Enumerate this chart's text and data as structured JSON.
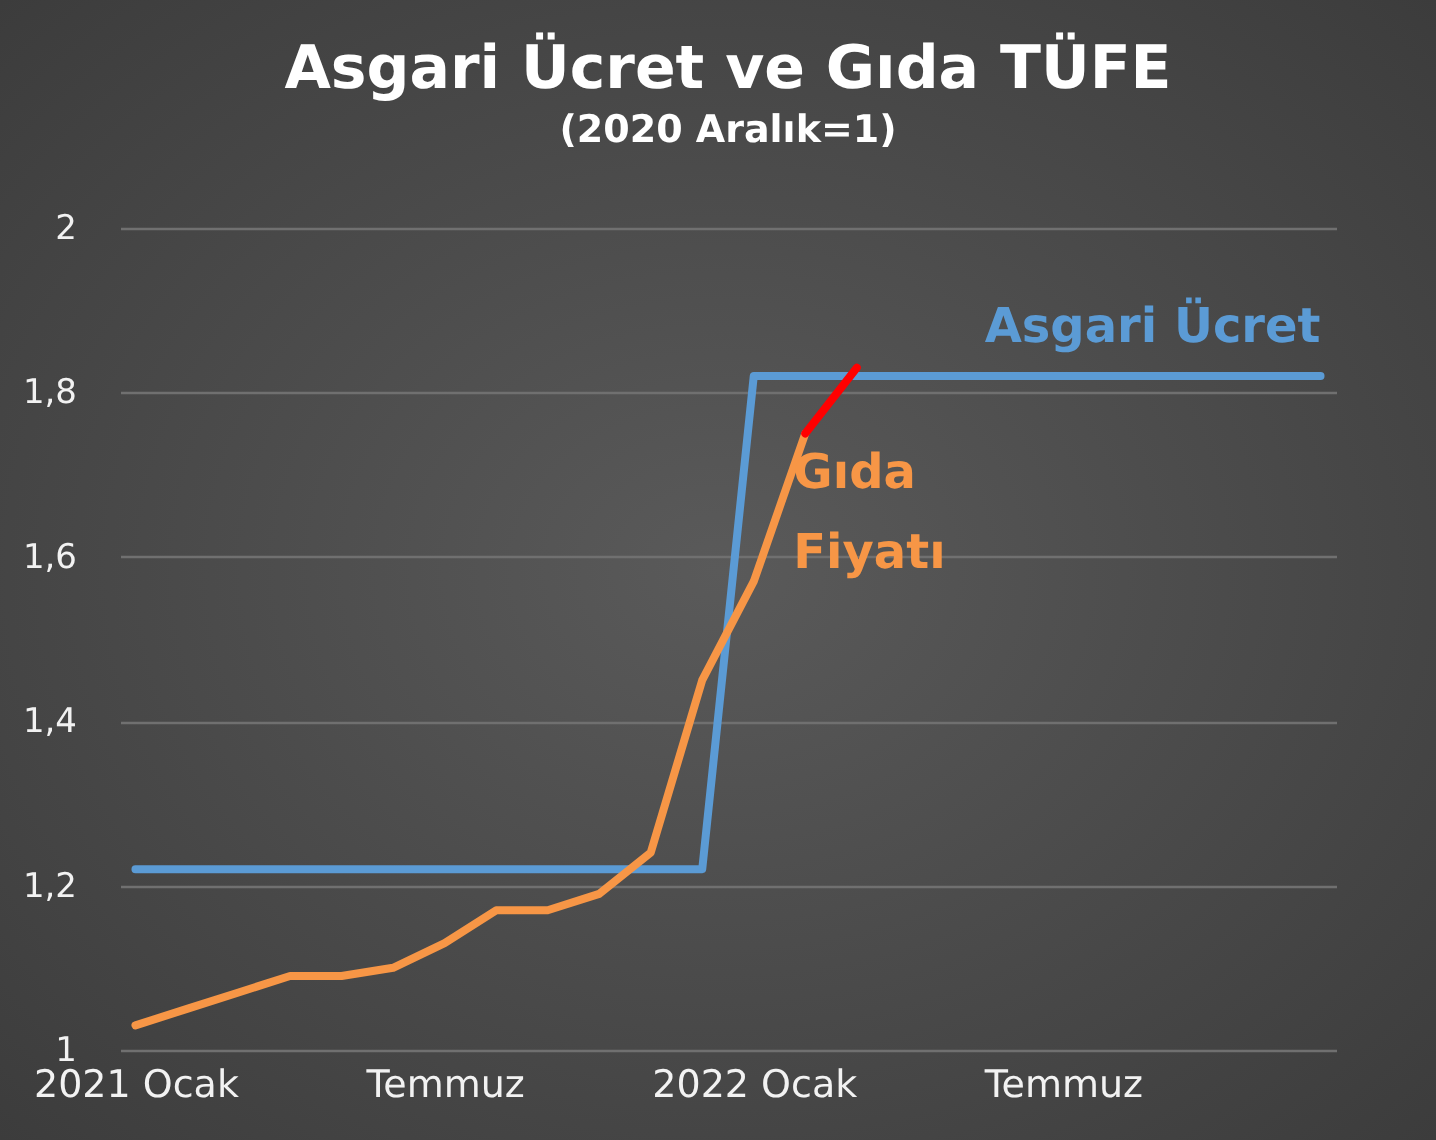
{
  "chart_data": {
    "type": "line",
    "title": "Asgari Ücret ve Gıda TÜFE",
    "subtitle": "(2020 Aralık=1)",
    "categories": [
      "2021 Ocak",
      null,
      null,
      null,
      null,
      null,
      "Temmuz",
      null,
      null,
      null,
      null,
      null,
      "2022 Ocak",
      null,
      null,
      null,
      null,
      null,
      "Temmuz",
      null,
      null,
      null,
      null,
      null
    ],
    "series": [
      {
        "name": "Asgari Ücret",
        "color": "#5b9bd5",
        "values": [
          1.22,
          1.22,
          1.22,
          1.22,
          1.22,
          1.22,
          1.22,
          1.22,
          1.22,
          1.22,
          1.22,
          1.22,
          1.82,
          1.82,
          1.82,
          1.82,
          1.82,
          1.82,
          1.82,
          1.82,
          1.82,
          1.82,
          1.82,
          1.82
        ]
      },
      {
        "name": "Gıda Fiyatı",
        "color": "#f79646",
        "values": [
          1.03,
          1.05,
          1.07,
          1.09,
          1.09,
          1.1,
          1.13,
          1.17,
          1.17,
          1.19,
          1.24,
          1.45,
          1.57,
          1.75,
          null,
          null,
          null,
          null,
          null,
          null,
          null,
          null,
          null,
          null
        ]
      },
      {
        "color": "#ff0000",
        "values": [
          null,
          null,
          null,
          null,
          null,
          null,
          null,
          null,
          null,
          null,
          null,
          null,
          null,
          1.75,
          1.83,
          null,
          null,
          null,
          null,
          null,
          null,
          null,
          null,
          null
        ]
      }
    ],
    "ylim": [
      1,
      2
    ],
    "yticks": [
      1,
      {
        "value": 1.2,
        "label": "1,2"
      },
      {
        "value": 1.4,
        "label": "1,4"
      },
      {
        "value": 1.6,
        "label": "1,6"
      },
      {
        "value": 1.8,
        "label": "1,8"
      },
      2
    ],
    "grid": "y"
  }
}
